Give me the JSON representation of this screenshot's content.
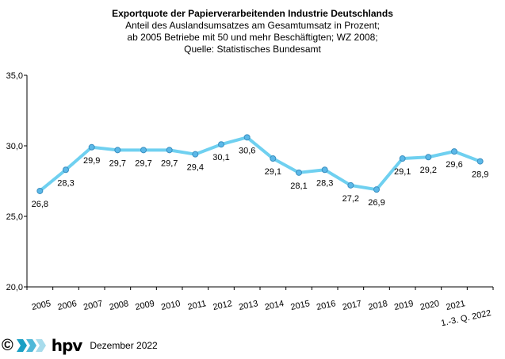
{
  "chart_data": {
    "type": "line",
    "title": "Exportquote der Papierverarbeitenden Industrie Deutschlands",
    "subtitle": [
      "Anteil des Auslandsumsatzes am Gesamtumsatz in Prozent;",
      "ab 2005 Betriebe mit 50 und mehr Beschäftigten; WZ 2008;",
      "Quelle: Statistisches Bundesamt"
    ],
    "categories": [
      "2005",
      "2006",
      "2007",
      "2008",
      "2009",
      "2010",
      "2011",
      "2012",
      "2013",
      "2014",
      "2015",
      "2016",
      "2017",
      "2018",
      "2019",
      "2020",
      "2021",
      "1.-3. Q. 2022"
    ],
    "values": [
      26.8,
      28.3,
      29.9,
      29.7,
      29.7,
      29.7,
      29.4,
      30.1,
      30.6,
      29.1,
      28.1,
      28.3,
      27.2,
      26.9,
      29.1,
      29.2,
      29.6,
      28.9
    ],
    "data_labels": [
      "26,8",
      "28,3",
      "29,9",
      "29,7",
      "29,7",
      "29,7",
      "29,4",
      "30,1",
      "30,6",
      "29,1",
      "28,1",
      "28,3",
      "27,2",
      "26,9",
      "29,1",
      "29,2",
      "29,6",
      "28,9"
    ],
    "ylim": [
      20,
      35
    ],
    "yticks": [
      "20,0",
      "25,0",
      "30,0",
      "35,0"
    ],
    "grid": false,
    "line_color": "#6fd0f0",
    "marker_color": "#5bb8e8"
  },
  "footer": {
    "copyright": "©",
    "logo_text": "hpv",
    "date": "Dezember 2022"
  }
}
